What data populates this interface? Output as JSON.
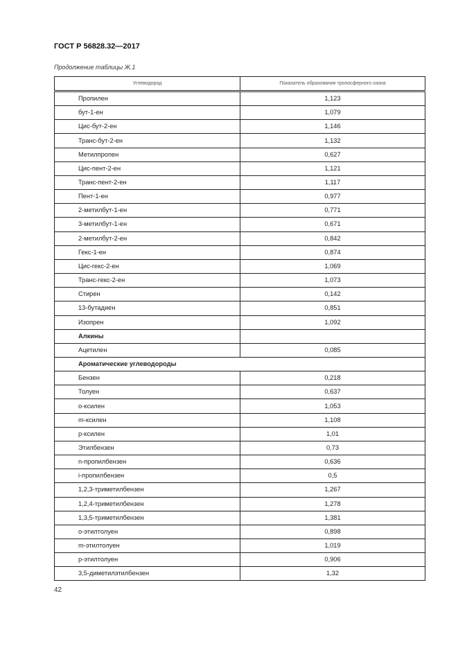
{
  "header": {
    "doc_code": "ГОСТ Р 56828.32—2017"
  },
  "caption": "Продолжение таблицы Ж.1",
  "table": {
    "columns": [
      "Углеводород",
      "Показатель образования тропосферного озона"
    ],
    "rows": [
      {
        "name": "Пропилен",
        "value": "1,123"
      },
      {
        "name": "бут-1-ен",
        "value": "1,079"
      },
      {
        "name": "Цис-бут-2-ен",
        "value": "1,146"
      },
      {
        "name": "Транс-бут-2-ен",
        "value": "1,132"
      },
      {
        "name": "Метилпропен",
        "value": "0,627"
      },
      {
        "name": "Цис-пент-2-ен",
        "value": "1,121"
      },
      {
        "name": "Транс-пент-2-ен",
        "value": "1,117"
      },
      {
        "name": "Пент-1-ен",
        "value": "0,977"
      },
      {
        "name": "2-метилбут-1-ен",
        "value": "0,771"
      },
      {
        "name": "3-метилбут-1-ен",
        "value": "0,671"
      },
      {
        "name": "2-метилбут-2-ен",
        "value": "0,842"
      },
      {
        "name": "Гекс-1-ен",
        "value": "0,874"
      },
      {
        "name": "Цис-гекс-2-ен",
        "value": "1,069"
      },
      {
        "name": "Транс-гекс-2-ен",
        "value": "1,073"
      },
      {
        "name": "Стирен",
        "value": "0,142"
      },
      {
        "name": "13-бутадиен",
        "value": "0,851"
      },
      {
        "name": "Изопрен",
        "value": "1,092"
      },
      {
        "section": "Алкины",
        "split": true
      },
      {
        "name": "Ацетилен",
        "value": "0,085"
      },
      {
        "section": "Ароматические углеводороды",
        "split": false
      },
      {
        "name": "Бензен",
        "value": "0,218"
      },
      {
        "name": "Толуен",
        "value": "0,637"
      },
      {
        "name": "о-ксилен",
        "value": "1,053"
      },
      {
        "name": "m-ксилен",
        "value": "1,108"
      },
      {
        "name": "p-ксилен",
        "value": "1,01"
      },
      {
        "name": "Этилбензен",
        "value": "0,73"
      },
      {
        "name": "n-пропилбензен",
        "value": "0,636"
      },
      {
        "name": "i-пропилбензен",
        "value": "0,5"
      },
      {
        "name": "1,2,3-триметилбензен",
        "value": "1,267"
      },
      {
        "name": "1,2,4-триметилбензен",
        "value": "1,278"
      },
      {
        "name": "1,3,5-триметилбензен",
        "value": "1,381"
      },
      {
        "name": "о-этилтолуен",
        "value": "0,898"
      },
      {
        "name": "m-этилтолуен",
        "value": "1,019"
      },
      {
        "name": "p-этилтолуен",
        "value": "0,906"
      },
      {
        "name": "3,5-диметилэтилбензен",
        "value": "1,32"
      }
    ]
  },
  "page_number": "42"
}
